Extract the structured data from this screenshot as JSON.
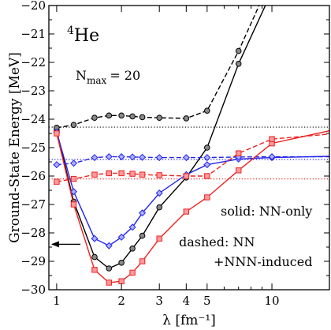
{
  "chart_data": {
    "type": "line",
    "x_scale": "log",
    "xlim": [
      0.92,
      18.5
    ],
    "ylim": [
      -30,
      -20
    ],
    "xlabel": "λ [fm⁻¹]",
    "ylabel": "Ground-State Energy [MeV]",
    "x_ticks": [
      1,
      2,
      3,
      4,
      5,
      10
    ],
    "x_tick_labels": [
      "1",
      "2",
      "3",
      "4",
      "5",
      "10"
    ],
    "y_ticks": [
      -30,
      -29,
      -28,
      -27,
      -26,
      -25,
      -24,
      -23,
      -22,
      -21,
      -20
    ],
    "y_tick_labels": [
      "−30",
      "−29",
      "−28",
      "−27",
      "−26",
      "−25",
      "−24",
      "−23",
      "−22",
      "−21",
      "−20"
    ],
    "annotations": {
      "nucleus_mass": "4",
      "nucleus_symbol": "He",
      "nmax_n": "N",
      "nmax_sub": "max",
      "nmax_val": "= 20",
      "solid": "solid: NN-only",
      "dashed1": "dashed: NN",
      "dashed2": "+NNN-induced"
    },
    "reference_lines": [
      {
        "color": "#000000",
        "y": -24.28
      },
      {
        "color": "#2222ee",
        "y": -25.42
      },
      {
        "color": "#ee2222",
        "y": -26.1
      }
    ],
    "arrow": {
      "y": -28.4
    },
    "series": [
      {
        "style": "solid",
        "color": "#000000",
        "marker": "circle",
        "x": [
          1.0,
          1.2,
          1.5,
          1.75,
          2.0,
          2.25,
          2.5,
          3.0,
          4.0,
          5.0,
          7.0,
          10.0,
          20.0
        ],
        "y": [
          -24.4,
          -26.9,
          -28.85,
          -29.25,
          -29.05,
          -28.55,
          -28.1,
          -27.1,
          -26.05,
          -25.0,
          -22.05,
          -19.5,
          -16.0
        ]
      },
      {
        "style": "dashed",
        "color": "#000000",
        "marker": "circle",
        "x": [
          1.0,
          1.2,
          1.5,
          1.75,
          2.0,
          2.25,
          2.5,
          3.0,
          4.0,
          5.0,
          7.0,
          10.0
        ],
        "y": [
          -24.3,
          -24.2,
          -23.95,
          -23.87,
          -23.87,
          -23.9,
          -23.93,
          -23.95,
          -23.97,
          -23.7,
          -21.6,
          -19.0
        ]
      },
      {
        "style": "solid",
        "color": "#2222ee",
        "marker": "diamond",
        "x": [
          1.0,
          1.2,
          1.5,
          1.75,
          2.0,
          2.25,
          2.5,
          3.0,
          4.0,
          5.0,
          7.0,
          10.0,
          20.0
        ],
        "y": [
          -24.45,
          -26.55,
          -28.2,
          -28.45,
          -28.15,
          -27.8,
          -27.3,
          -26.6,
          -25.95,
          -25.6,
          -25.4,
          -25.35,
          -25.3
        ]
      },
      {
        "style": "dashed",
        "color": "#2222ee",
        "marker": "diamond",
        "x": [
          1.0,
          1.2,
          1.5,
          1.75,
          2.0,
          2.25,
          2.5,
          3.0,
          4.0,
          5.0,
          7.0,
          10.0,
          20.0
        ],
        "y": [
          -25.6,
          -25.55,
          -25.35,
          -25.32,
          -25.32,
          -25.33,
          -25.34,
          -25.35,
          -25.35,
          -25.35,
          -25.33,
          -25.32,
          -25.32
        ]
      },
      {
        "style": "solid",
        "color": "#ee2222",
        "marker": "square",
        "x": [
          1.0,
          1.2,
          1.5,
          1.75,
          2.0,
          2.25,
          2.5,
          3.0,
          4.0,
          5.0,
          7.0,
          10.0,
          20.0
        ],
        "y": [
          -24.5,
          -27.0,
          -29.3,
          -29.75,
          -29.7,
          -29.4,
          -29.0,
          -28.2,
          -27.25,
          -26.75,
          -25.8,
          -24.85,
          -24.35
        ]
      },
      {
        "style": "dashed",
        "color": "#ee2222",
        "marker": "square",
        "x": [
          1.0,
          1.2,
          1.5,
          1.75,
          2.0,
          2.25,
          2.5,
          3.0,
          4.0,
          5.0,
          7.0,
          10.0,
          20.0
        ],
        "y": [
          -26.2,
          -26.1,
          -25.95,
          -25.9,
          -25.9,
          -25.92,
          -25.95,
          -25.97,
          -26.0,
          -26.0,
          -25.2,
          -24.7,
          -24.5
        ]
      }
    ]
  }
}
